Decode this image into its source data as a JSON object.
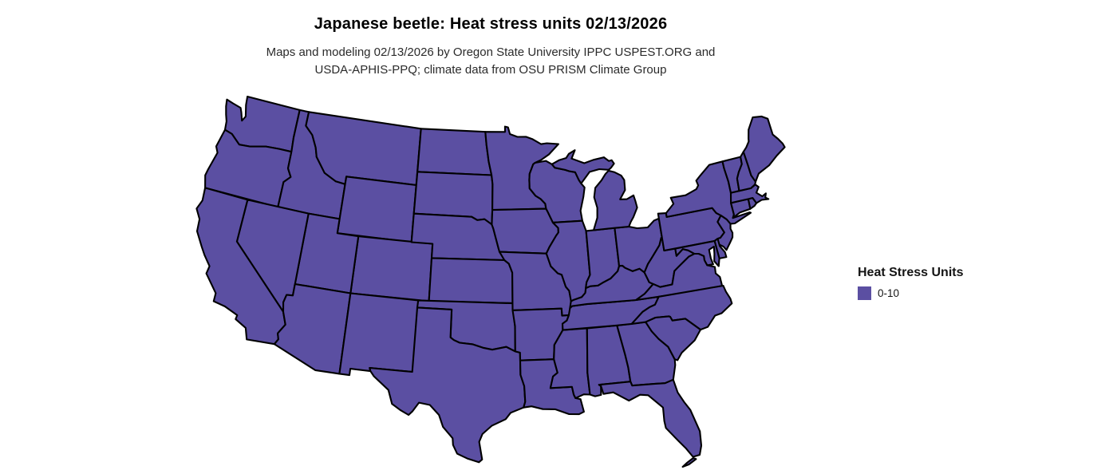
{
  "title": "Japanese beetle: Heat stress units 02/13/2026",
  "subtitle_line1": "Maps and modeling 02/13/2026 by Oregon State University IPPC USPEST.ORG and",
  "subtitle_line2": "USDA-APHIS-PPQ; climate data from OSU PRISM Climate Group",
  "legend": {
    "title": "Heat Stress Units",
    "items": [
      {
        "label": "0-10",
        "color": "#5B4FA2"
      }
    ]
  },
  "map": {
    "region": "Contiguous United States",
    "fill_color": "#5B4FA2",
    "border_color": "#000000",
    "background_color": "#FFFFFF"
  },
  "chart_data": {
    "type": "choropleth",
    "title": "Japanese beetle: Heat stress units 02/13/2026",
    "subtitle": "Maps and modeling 02/13/2026 by Oregon State University IPPC USPEST.ORG and USDA-APHIS-PPQ; climate data from OSU PRISM Climate Group",
    "legend_title": "Heat Stress Units",
    "legend_position": "right",
    "classes": [
      {
        "label": "0-10",
        "color": "#5B4FA2"
      }
    ],
    "states": [
      "WA",
      "OR",
      "CA",
      "NV",
      "ID",
      "MT",
      "WY",
      "UT",
      "AZ",
      "NM",
      "CO",
      "ND",
      "SD",
      "NE",
      "KS",
      "OK",
      "TX",
      "MN",
      "IA",
      "MO",
      "AR",
      "LA",
      "WI",
      "IL",
      "MS",
      "MI",
      "IN",
      "OH",
      "KY",
      "TN",
      "AL",
      "GA",
      "FL",
      "SC",
      "NC",
      "VA",
      "WV",
      "PA",
      "NY",
      "NJ",
      "DE",
      "MD",
      "CT",
      "RI",
      "MA",
      "VT",
      "NH",
      "ME"
    ],
    "value_class_for_all_states": "0-10"
  }
}
